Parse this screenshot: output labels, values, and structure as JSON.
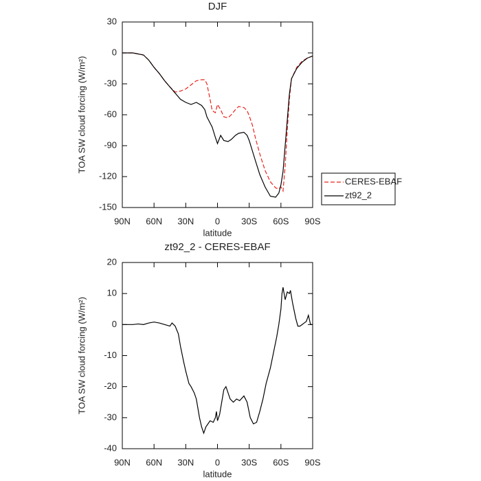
{
  "chart_data": [
    {
      "type": "line",
      "title": "DJF",
      "ylabel": "TOA SW cloud forcing (W/m²)",
      "xlabel": "latitude",
      "x": [
        90,
        80,
        70,
        65,
        60,
        55,
        50,
        45,
        40,
        35,
        30,
        25,
        20,
        15,
        12,
        10,
        7,
        5,
        2,
        0,
        -3,
        -6,
        -10,
        -13,
        -17,
        -20,
        -25,
        -28,
        -30,
        -33,
        -36,
        -40,
        -45,
        -50,
        -55,
        -58,
        -60,
        -62,
        -64,
        -66,
        -68,
        -70,
        -75,
        -80,
        -85,
        -90
      ],
      "series": [
        {
          "name": "CERES-EBAF",
          "color": "#e8231c",
          "dashed": true,
          "values": [
            0,
            0,
            -2,
            -7,
            -14,
            -20,
            -27,
            -33,
            -38,
            -37,
            -35,
            -31,
            -27,
            -26,
            -26,
            -30,
            -45,
            -56,
            -58,
            -50,
            -55,
            -62,
            -63,
            -60,
            -55,
            -52,
            -53,
            -56,
            -61,
            -70,
            -83,
            -98,
            -114,
            -125,
            -131,
            -132,
            -130,
            -134,
            -110,
            -75,
            -45,
            -25,
            -14,
            -8,
            -5,
            -3
          ]
        },
        {
          "name": "zt92_2",
          "color": "#000000",
          "dashed": false,
          "values": [
            0,
            0,
            -2,
            -7,
            -14,
            -20,
            -27,
            -33,
            -39,
            -45,
            -48,
            -50,
            -48,
            -51,
            -55,
            -62,
            -68,
            -72,
            -82,
            -88,
            -80,
            -85,
            -86,
            -84,
            -80,
            -78,
            -77,
            -80,
            -85,
            -95,
            -105,
            -118,
            -130,
            -139,
            -140,
            -136,
            -128,
            -115,
            -90,
            -65,
            -40,
            -25,
            -15,
            -9,
            -5,
            -3
          ]
        }
      ],
      "xlim": [
        90,
        -90
      ],
      "ylim": [
        -150,
        30
      ],
      "xticks": [
        {
          "value": 90,
          "label": "90N"
        },
        {
          "value": 60,
          "label": "60N"
        },
        {
          "value": 30,
          "label": "30N"
        },
        0,
        {
          "value": -30,
          "label": "30S"
        },
        {
          "value": -60,
          "label": "60S"
        },
        {
          "value": -90,
          "label": "90S"
        }
      ],
      "yticks": [
        -150,
        -120,
        -90,
        -60,
        -30,
        0,
        30
      ],
      "legend": "right"
    },
    {
      "type": "line",
      "title": "zt92_2 - CERES-EBAF",
      "ylabel": "TOA SW cloud forcing (W/m²)",
      "xlabel": "latitude",
      "x": [
        90,
        80,
        75,
        70,
        65,
        60,
        55,
        50,
        45,
        43,
        40,
        37,
        35,
        32,
        30,
        27,
        25,
        22,
        20,
        17,
        15,
        13,
        11,
        9,
        7,
        4,
        2,
        1,
        0,
        -2,
        -4,
        -6,
        -8,
        -10,
        -12,
        -15,
        -18,
        -21,
        -25,
        -28,
        -31,
        -34,
        -37,
        -40,
        -43,
        -46,
        -50,
        -53,
        -56,
        -58,
        -60,
        -61,
        -62,
        -64,
        -66,
        -68,
        -69,
        -71,
        -74,
        -76,
        -78,
        -80,
        -82,
        -84,
        -86,
        -88,
        -90
      ],
      "series": [
        {
          "color": "#000000",
          "dashed": false,
          "values": [
            0,
            0,
            0.2,
            0,
            0.5,
            0.8,
            0.5,
            0,
            -0.5,
            0.5,
            -0.5,
            -3,
            -7,
            -12,
            -15,
            -19,
            -20,
            -22,
            -24,
            -30,
            -33,
            -35,
            -33,
            -32,
            -31,
            -31.5,
            -30,
            -28,
            -31,
            -29,
            -25,
            -21,
            -20,
            -22,
            -24,
            -25,
            -24,
            -24.5,
            -23,
            -25,
            -30,
            -32,
            -31.5,
            -28,
            -24,
            -19,
            -14,
            -9,
            -4,
            0,
            5,
            10,
            12,
            8,
            10.5,
            10,
            11,
            7,
            2,
            -0.5,
            -0.5,
            0,
            0.5,
            1,
            3,
            0,
            0
          ]
        }
      ],
      "xlim": [
        90,
        -90
      ],
      "ylim": [
        -40,
        20
      ],
      "xticks": [
        {
          "value": 90,
          "label": "90N"
        },
        {
          "value": 60,
          "label": "60N"
        },
        {
          "value": 30,
          "label": "30N"
        },
        0,
        {
          "value": -30,
          "label": "30S"
        },
        {
          "value": -60,
          "label": "60S"
        },
        {
          "value": -90,
          "label": "90S"
        }
      ],
      "yticks": [
        -40,
        -30,
        -20,
        -10,
        0,
        10,
        20
      ]
    }
  ]
}
